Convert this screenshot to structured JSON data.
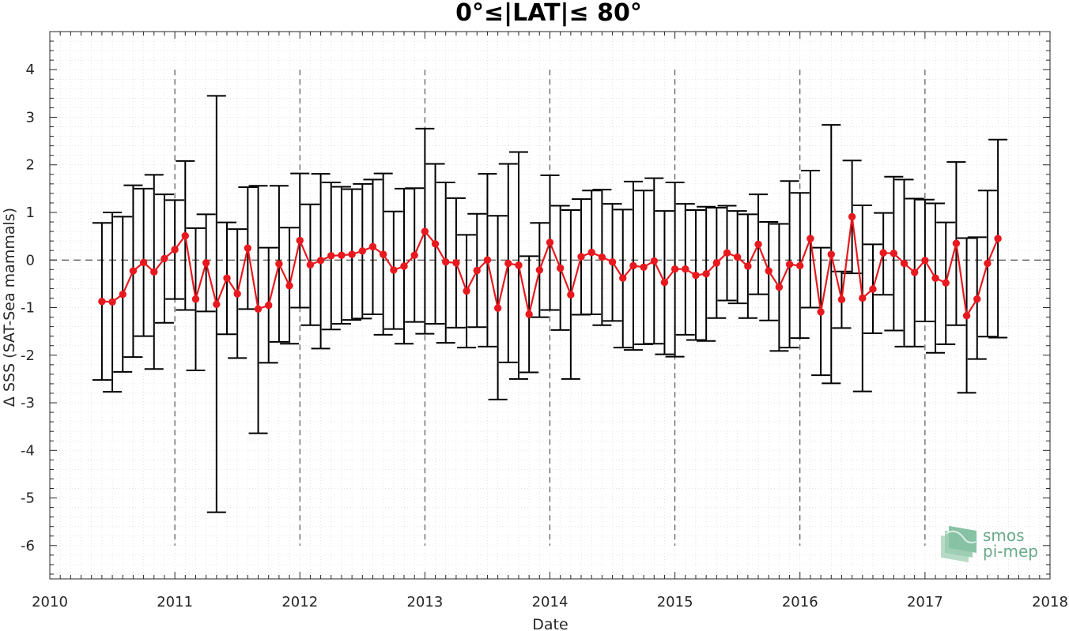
{
  "chart_data": {
    "type": "line",
    "title": "0°≤|LAT|≤ 80°",
    "xlabel": "Date",
    "ylabel": "Δ SSS (SAT-Sea mammals)",
    "xlim": [
      2010,
      2018
    ],
    "ylim": [
      -6.7,
      4.8
    ],
    "xticks": [
      "2010",
      "2011",
      "2012",
      "2013",
      "2014",
      "2015",
      "2016",
      "2017",
      "2018"
    ],
    "yticks": [
      "4",
      "3",
      "2",
      "1",
      "0",
      "-1",
      "-2",
      "-3",
      "-4",
      "-5",
      "-6"
    ],
    "grid": true,
    "year_dividers": [
      2011,
      2012,
      2013,
      2014,
      2015,
      2016,
      2017
    ],
    "zero_line": 0,
    "series": [
      {
        "color": "#e8191e",
        "error_bar_color": "#000000",
        "points": [
          {
            "date": "2010-06",
            "mean": -0.87,
            "lower": -2.52,
            "upper": 0.78
          },
          {
            "date": "2010-07",
            "mean": -0.88,
            "lower": -2.77,
            "upper": 1.0
          },
          {
            "date": "2010-08",
            "mean": -0.72,
            "lower": -2.35,
            "upper": 0.91
          },
          {
            "date": "2010-09",
            "mean": -0.23,
            "lower": -2.04,
            "upper": 1.57
          },
          {
            "date": "2010-10",
            "mean": -0.05,
            "lower": -1.6,
            "upper": 1.5
          },
          {
            "date": "2010-11",
            "mean": -0.25,
            "lower": -2.29,
            "upper": 1.79
          },
          {
            "date": "2010-12",
            "mean": 0.03,
            "lower": -1.32,
            "upper": 1.38
          },
          {
            "date": "2011-01",
            "mean": 0.22,
            "lower": -0.82,
            "upper": 1.26
          },
          {
            "date": "2011-02",
            "mean": 0.51,
            "lower": -1.05,
            "upper": 2.08
          },
          {
            "date": "2011-03",
            "mean": -0.82,
            "lower": -2.32,
            "upper": 0.67
          },
          {
            "date": "2011-04",
            "mean": -0.06,
            "lower": -1.08,
            "upper": 0.96
          },
          {
            "date": "2011-05",
            "mean": -0.93,
            "lower": -5.3,
            "upper": 3.45
          },
          {
            "date": "2011-06",
            "mean": -0.38,
            "lower": -1.56,
            "upper": 0.79
          },
          {
            "date": "2011-07",
            "mean": -0.71,
            "lower": -2.06,
            "upper": 0.65
          },
          {
            "date": "2011-08",
            "mean": 0.25,
            "lower": -1.03,
            "upper": 1.53
          },
          {
            "date": "2011-09",
            "mean": -1.03,
            "lower": -3.64,
            "upper": 1.56
          },
          {
            "date": "2011-10",
            "mean": -0.95,
            "lower": -2.16,
            "upper": 0.26
          },
          {
            "date": "2011-11",
            "mean": -0.08,
            "lower": -1.72,
            "upper": 1.56
          },
          {
            "date": "2011-12",
            "mean": -0.54,
            "lower": -1.76,
            "upper": 0.68
          },
          {
            "date": "2012-01",
            "mean": 0.41,
            "lower": -1.0,
            "upper": 1.82
          },
          {
            "date": "2012-02",
            "mean": -0.1,
            "lower": -1.37,
            "upper": 1.17
          },
          {
            "date": "2012-03",
            "mean": -0.01,
            "lower": -1.86,
            "upper": 1.81
          },
          {
            "date": "2012-04",
            "mean": 0.09,
            "lower": -1.46,
            "upper": 1.63
          },
          {
            "date": "2012-05",
            "mean": 0.1,
            "lower": -1.34,
            "upper": 1.54
          },
          {
            "date": "2012-06",
            "mean": 0.12,
            "lower": -1.26,
            "upper": 1.49
          },
          {
            "date": "2012-07",
            "mean": 0.19,
            "lower": -1.23,
            "upper": 1.6
          },
          {
            "date": "2012-08",
            "mean": 0.28,
            "lower": -1.14,
            "upper": 1.69
          },
          {
            "date": "2012-09",
            "mean": 0.12,
            "lower": -1.57,
            "upper": 1.82
          },
          {
            "date": "2012-10",
            "mean": -0.21,
            "lower": -1.45,
            "upper": 1.02
          },
          {
            "date": "2012-11",
            "mean": -0.13,
            "lower": -1.76,
            "upper": 1.5
          },
          {
            "date": "2012-12",
            "mean": 0.1,
            "lower": -1.3,
            "upper": 1.51
          },
          {
            "date": "2013-01",
            "mean": 0.6,
            "lower": -1.55,
            "upper": 2.76
          },
          {
            "date": "2013-02",
            "mean": 0.34,
            "lower": -1.34,
            "upper": 2.02
          },
          {
            "date": "2013-03",
            "mean": -0.04,
            "lower": -1.74,
            "upper": 1.63
          },
          {
            "date": "2013-04",
            "mean": -0.06,
            "lower": -1.42,
            "upper": 1.3
          },
          {
            "date": "2013-05",
            "mean": -0.65,
            "lower": -1.84,
            "upper": 0.53
          },
          {
            "date": "2013-06",
            "mean": -0.22,
            "lower": -1.41,
            "upper": 0.97
          },
          {
            "date": "2013-07",
            "mean": 0.0,
            "lower": -1.82,
            "upper": 1.81
          },
          {
            "date": "2013-08",
            "mean": -1.01,
            "lower": -2.93,
            "upper": 0.93
          },
          {
            "date": "2013-09",
            "mean": -0.07,
            "lower": -2.15,
            "upper": 2.02
          },
          {
            "date": "2013-10",
            "mean": -0.11,
            "lower": -2.5,
            "upper": 2.27
          },
          {
            "date": "2013-11",
            "mean": -1.14,
            "lower": -2.36,
            "upper": 0.08
          },
          {
            "date": "2013-12",
            "mean": -0.21,
            "lower": -1.2,
            "upper": 0.78
          },
          {
            "date": "2014-01",
            "mean": 0.37,
            "lower": -1.05,
            "upper": 1.78
          },
          {
            "date": "2014-02",
            "mean": -0.17,
            "lower": -1.47,
            "upper": 1.14
          },
          {
            "date": "2014-03",
            "mean": -0.73,
            "lower": -2.5,
            "upper": 1.05
          },
          {
            "date": "2014-04",
            "mean": 0.07,
            "lower": -1.15,
            "upper": 1.28
          },
          {
            "date": "2014-05",
            "mean": 0.16,
            "lower": -1.14,
            "upper": 1.46
          },
          {
            "date": "2014-06",
            "mean": 0.06,
            "lower": -1.37,
            "upper": 1.48
          },
          {
            "date": "2014-07",
            "mean": -0.04,
            "lower": -1.28,
            "upper": 1.18
          },
          {
            "date": "2014-08",
            "mean": -0.38,
            "lower": -1.84,
            "upper": 1.06
          },
          {
            "date": "2014-09",
            "mean": -0.12,
            "lower": -1.89,
            "upper": 1.65
          },
          {
            "date": "2014-10",
            "mean": -0.15,
            "lower": -1.77,
            "upper": 1.46
          },
          {
            "date": "2014-11",
            "mean": -0.02,
            "lower": -1.76,
            "upper": 1.72
          },
          {
            "date": "2014-12",
            "mean": -0.47,
            "lower": -1.98,
            "upper": 1.03
          },
          {
            "date": "2015-01",
            "mean": -0.19,
            "lower": -2.03,
            "upper": 1.63
          },
          {
            "date": "2015-02",
            "mean": -0.19,
            "lower": -1.57,
            "upper": 1.18
          },
          {
            "date": "2015-03",
            "mean": -0.32,
            "lower": -1.68,
            "upper": 1.05
          },
          {
            "date": "2015-04",
            "mean": -0.29,
            "lower": -1.7,
            "upper": 1.12
          },
          {
            "date": "2015-05",
            "mean": -0.06,
            "lower": -1.22,
            "upper": 1.1
          },
          {
            "date": "2015-06",
            "mean": 0.15,
            "lower": -0.85,
            "upper": 1.14
          },
          {
            "date": "2015-07",
            "mean": 0.06,
            "lower": -0.91,
            "upper": 1.03
          },
          {
            "date": "2015-08",
            "mean": -0.13,
            "lower": -1.22,
            "upper": 0.96
          },
          {
            "date": "2015-09",
            "mean": 0.33,
            "lower": -0.72,
            "upper": 1.38
          },
          {
            "date": "2015-10",
            "mean": -0.23,
            "lower": -1.27,
            "upper": 0.8
          },
          {
            "date": "2015-11",
            "mean": -0.57,
            "lower": -1.91,
            "upper": 0.76
          },
          {
            "date": "2015-12",
            "mean": -0.09,
            "lower": -1.84,
            "upper": 1.66
          },
          {
            "date": "2016-01",
            "mean": -0.12,
            "lower": -1.64,
            "upper": 1.41
          },
          {
            "date": "2016-02",
            "mean": 0.45,
            "lower": -1.0,
            "upper": 1.88
          },
          {
            "date": "2016-03",
            "mean": -1.09,
            "lower": -2.42,
            "upper": 0.26
          },
          {
            "date": "2016-04",
            "mean": 0.12,
            "lower": -2.59,
            "upper": 2.84
          },
          {
            "date": "2016-05",
            "mean": -0.83,
            "lower": -1.43,
            "upper": -0.24
          },
          {
            "date": "2016-06",
            "mean": 0.91,
            "lower": -0.28,
            "upper": 2.09
          },
          {
            "date": "2016-07",
            "mean": -0.8,
            "lower": -2.76,
            "upper": 1.15
          },
          {
            "date": "2016-08",
            "mean": -0.61,
            "lower": -1.54,
            "upper": 0.33
          },
          {
            "date": "2016-09",
            "mean": 0.15,
            "lower": -0.73,
            "upper": 0.99
          },
          {
            "date": "2016-10",
            "mean": 0.14,
            "lower": -1.48,
            "upper": 1.75
          },
          {
            "date": "2016-11",
            "mean": -0.07,
            "lower": -1.82,
            "upper": 1.69
          },
          {
            "date": "2016-12",
            "mean": -0.26,
            "lower": -1.82,
            "upper": 1.29
          },
          {
            "date": "2017-01",
            "mean": -0.01,
            "lower": -1.29,
            "upper": 1.27
          },
          {
            "date": "2017-02",
            "mean": -0.38,
            "lower": -1.95,
            "upper": 1.19
          },
          {
            "date": "2017-03",
            "mean": -0.48,
            "lower": -1.77,
            "upper": 0.79
          },
          {
            "date": "2017-04",
            "mean": 0.35,
            "lower": -1.37,
            "upper": 2.06
          },
          {
            "date": "2017-05",
            "mean": -1.17,
            "lower": -2.79,
            "upper": 0.46
          },
          {
            "date": "2017-06",
            "mean": -0.82,
            "lower": -2.08,
            "upper": 0.48
          },
          {
            "date": "2017-07",
            "mean": -0.07,
            "lower": -1.61,
            "upper": 1.46
          },
          {
            "date": "2017-08",
            "mean": 0.45,
            "lower": -1.63,
            "upper": 2.53
          }
        ]
      }
    ]
  },
  "logo": {
    "line1": "smos",
    "line2": "pi-mep",
    "color": "#6aaa8a"
  }
}
